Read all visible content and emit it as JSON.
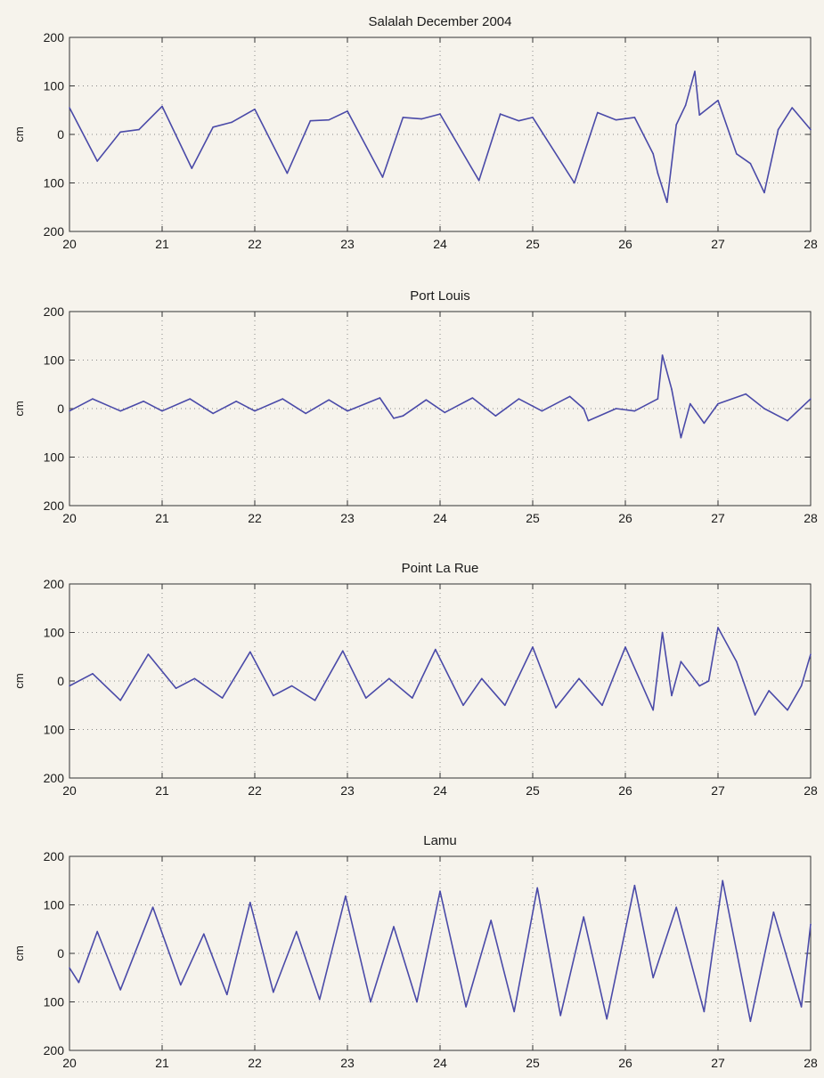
{
  "colors": {
    "trace": "#4a4aa8",
    "grid": "#888888",
    "axis": "#333333",
    "background": "#f6f3ec"
  },
  "chart_data": [
    {
      "type": "line",
      "title": "Salalah December 2004",
      "xlabel": "",
      "ylabel": "cm",
      "xlim": [
        20,
        28
      ],
      "ylim": [
        -200,
        200
      ],
      "xticks": [
        "20",
        "21",
        "22",
        "23",
        "24",
        "25",
        "26",
        "27",
        "28"
      ],
      "yticks": [
        "200",
        "100",
        "0",
        "100",
        "200"
      ],
      "grid": true,
      "series": [
        {
          "x": [
            20.0,
            20.3,
            20.55,
            20.75,
            21.0,
            21.32,
            21.55,
            21.75,
            22.0,
            22.35,
            22.6,
            22.8,
            23.0,
            23.38,
            23.6,
            23.8,
            24.0,
            24.42,
            24.65,
            24.85,
            25.0,
            25.45,
            25.7,
            25.9,
            26.1,
            26.3,
            26.35,
            26.45,
            26.55,
            26.65,
            26.75,
            26.8,
            27.0,
            27.2,
            27.35,
            27.5,
            27.65,
            27.8,
            28.0
          ],
          "y": [
            55,
            -55,
            5,
            10,
            58,
            -70,
            15,
            25,
            52,
            -80,
            28,
            30,
            48,
            -88,
            35,
            32,
            42,
            -95,
            42,
            28,
            35,
            -100,
            45,
            30,
            35,
            -40,
            -80,
            -140,
            20,
            60,
            130,
            40,
            70,
            -40,
            -60,
            -120,
            10,
            55,
            10
          ]
        }
      ]
    },
    {
      "type": "line",
      "title": "Port Louis",
      "xlabel": "",
      "ylabel": "cm",
      "xlim": [
        20,
        28
      ],
      "ylim": [
        -200,
        200
      ],
      "xticks": [
        "20",
        "21",
        "22",
        "23",
        "24",
        "25",
        "26",
        "27",
        "28"
      ],
      "yticks": [
        "200",
        "100",
        "0",
        "100",
        "200"
      ],
      "grid": true,
      "series": [
        {
          "x": [
            20.0,
            20.25,
            20.55,
            20.8,
            21.0,
            21.3,
            21.55,
            21.6,
            21.8,
            22.0,
            22.3,
            22.55,
            22.8,
            23.0,
            23.35,
            23.5,
            23.6,
            23.85,
            24.05,
            24.35,
            24.6,
            24.85,
            25.1,
            25.4,
            25.55,
            25.6,
            25.9,
            26.1,
            26.35,
            26.4,
            26.5,
            26.6,
            26.7,
            26.85,
            27.0,
            27.3,
            27.5,
            27.75,
            28.0
          ],
          "y": [
            -5,
            20,
            -5,
            15,
            -5,
            20,
            -10,
            -5,
            15,
            -5,
            20,
            -10,
            18,
            -5,
            22,
            -20,
            -15,
            18,
            -8,
            22,
            -15,
            20,
            -5,
            25,
            0,
            -25,
            0,
            -5,
            20,
            110,
            40,
            -60,
            10,
            -30,
            10,
            30,
            0,
            -25,
            20
          ]
        }
      ]
    },
    {
      "type": "line",
      "title": "Point La Rue",
      "xlabel": "",
      "ylabel": "cm",
      "xlim": [
        20,
        28
      ],
      "ylim": [
        -200,
        200
      ],
      "xticks": [
        "20",
        "21",
        "22",
        "23",
        "24",
        "25",
        "26",
        "27",
        "28"
      ],
      "yticks": [
        "200",
        "100",
        "0",
        "100",
        "200"
      ],
      "grid": true,
      "series": [
        {
          "x": [
            20.0,
            20.25,
            20.55,
            20.85,
            21.15,
            21.35,
            21.65,
            21.95,
            22.2,
            22.4,
            22.65,
            22.95,
            23.2,
            23.45,
            23.7,
            23.95,
            24.25,
            24.45,
            24.7,
            25.0,
            25.25,
            25.5,
            25.75,
            26.0,
            26.3,
            26.4,
            26.5,
            26.6,
            26.8,
            26.9,
            27.0,
            27.2,
            27.4,
            27.55,
            27.75,
            27.9,
            28.0
          ],
          "y": [
            -10,
            15,
            -40,
            55,
            -15,
            5,
            -35,
            60,
            -30,
            -10,
            -40,
            62,
            -35,
            5,
            -35,
            65,
            -50,
            5,
            -50,
            70,
            -55,
            5,
            -50,
            70,
            -60,
            100,
            -30,
            40,
            -10,
            0,
            110,
            40,
            -70,
            -20,
            -60,
            -10,
            55
          ]
        }
      ]
    },
    {
      "type": "line",
      "title": "Lamu",
      "xlabel": "",
      "ylabel": "cm",
      "xlim": [
        20,
        28
      ],
      "ylim": [
        -200,
        200
      ],
      "xticks": [
        "20",
        "21",
        "22",
        "23",
        "24",
        "25",
        "26",
        "27",
        "28"
      ],
      "yticks": [
        "200",
        "100",
        "0",
        "100",
        "200"
      ],
      "grid": true,
      "series": [
        {
          "x": [
            20.0,
            20.1,
            20.3,
            20.55,
            20.9,
            21.2,
            21.45,
            21.7,
            21.95,
            22.2,
            22.45,
            22.7,
            22.98,
            23.25,
            23.5,
            23.75,
            24.0,
            24.28,
            24.55,
            24.8,
            25.05,
            25.3,
            25.55,
            25.8,
            26.1,
            26.3,
            26.55,
            26.85,
            27.05,
            27.35,
            27.6,
            27.9,
            28.0
          ],
          "y": [
            -30,
            -60,
            45,
            -75,
            95,
            -65,
            40,
            -85,
            105,
            -80,
            45,
            -95,
            118,
            -100,
            55,
            -100,
            128,
            -110,
            68,
            -120,
            135,
            -128,
            75,
            -135,
            140,
            -50,
            95,
            -120,
            150,
            -140,
            85,
            -110,
            60
          ]
        }
      ]
    }
  ]
}
